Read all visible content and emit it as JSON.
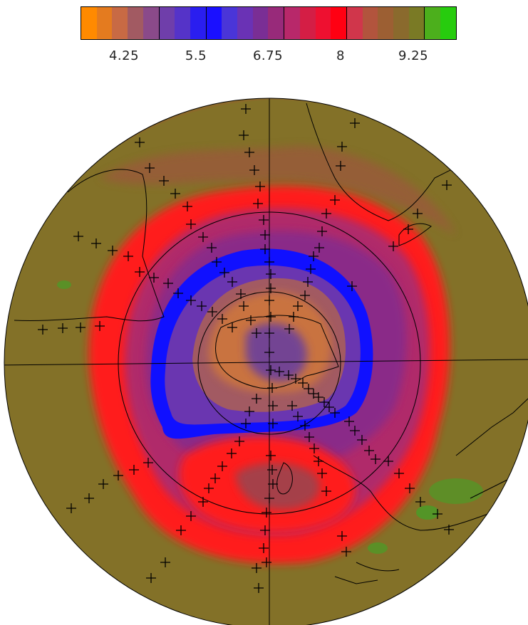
{
  "colorbar": {
    "colors": [
      "#ff8a00",
      "#e47b1f",
      "#c86a44",
      "#a25a62",
      "#8a4a8a",
      "#6f3eaa",
      "#5533c8",
      "#2a1ef0",
      "#1a10ff",
      "#4a35d8",
      "#6a32b5",
      "#7a2e95",
      "#982a7a",
      "#b8286a",
      "#d41e45",
      "#ee1030",
      "#ff0012",
      "#d0364b",
      "#b2543d",
      "#9c5f33",
      "#8a6a2d",
      "#7a7a25",
      "#4caf1c",
      "#27cc0e"
    ],
    "tick_labels": [
      "4.25",
      "5.5",
      "6.75",
      "8",
      "9.25"
    ]
  },
  "map": {
    "colors": {
      "background": "#8b6a2a",
      "olive": "#807528",
      "ring_red": "#ff1a1a",
      "ring_purple": "#8a2b88",
      "vortex_blue": "#1010ff",
      "vortex_purple": "#6a36b0",
      "core_orange": "#d0783a",
      "green": "#3fa526"
    }
  }
}
